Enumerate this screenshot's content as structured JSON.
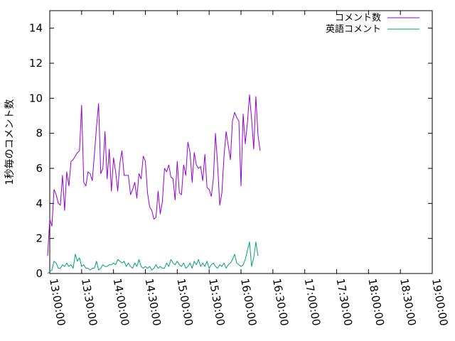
{
  "chart_data": {
    "type": "line",
    "ylabel": "1秒毎のコメント数",
    "xlabel": "",
    "title": "",
    "ylim": [
      0,
      15
    ],
    "xlim": [
      "13:00:00",
      "19:00:00"
    ],
    "x_ticks": [
      "13:00:00",
      "13:30:00",
      "14:00:00",
      "14:30:00",
      "15:00:00",
      "15:30:00",
      "16:00:00",
      "16:30:00",
      "17:00:00",
      "17:30:00",
      "18:00:00",
      "18:30:00",
      "19:00:00"
    ],
    "y_ticks": [
      "0",
      "2",
      "4",
      "6",
      "8",
      "10",
      "12",
      "14"
    ],
    "legend_position": "top-right",
    "grid": false,
    "series": [
      {
        "name": "コメント数",
        "color": "#9400d3",
        "points": [
          [
            "12:58:00",
            1.0
          ],
          [
            "13:00:00",
            3.1
          ],
          [
            "13:02:00",
            2.7
          ],
          [
            "13:04:00",
            4.8
          ],
          [
            "13:06:00",
            4.5
          ],
          [
            "13:08:00",
            4.0
          ],
          [
            "13:10:00",
            3.9
          ],
          [
            "13:12:00",
            5.6
          ],
          [
            "13:14:00",
            3.6
          ],
          [
            "13:16:00",
            5.8
          ],
          [
            "13:18:00",
            5.0
          ],
          [
            "13:20:00",
            6.4
          ],
          [
            "13:22:00",
            6.5
          ],
          [
            "13:24:00",
            6.7
          ],
          [
            "13:26:00",
            6.9
          ],
          [
            "13:28:00",
            7.0
          ],
          [
            "13:30:00",
            9.6
          ],
          [
            "13:32:00",
            5.2
          ],
          [
            "13:34:00",
            5.0
          ],
          [
            "13:36:00",
            5.8
          ],
          [
            "13:38:00",
            5.7
          ],
          [
            "13:40:00",
            5.3
          ],
          [
            "13:42:00",
            6.8
          ],
          [
            "13:44:00",
            8.4
          ],
          [
            "13:46:00",
            9.7
          ],
          [
            "13:48:00",
            5.7
          ],
          [
            "13:50:00",
            6.0
          ],
          [
            "13:52:00",
            8.1
          ],
          [
            "13:54:00",
            5.4
          ],
          [
            "13:56:00",
            7.1
          ],
          [
            "13:58:00",
            4.7
          ],
          [
            "14:00:00",
            6.6
          ],
          [
            "14:02:00",
            5.8
          ],
          [
            "14:04:00",
            4.7
          ],
          [
            "14:06:00",
            6.3
          ],
          [
            "14:08:00",
            7.0
          ],
          [
            "14:10:00",
            5.6
          ],
          [
            "14:12:00",
            5.6
          ],
          [
            "14:14:00",
            5.6
          ],
          [
            "14:16:00",
            4.5
          ],
          [
            "14:18:00",
            4.8
          ],
          [
            "14:20:00",
            5.2
          ],
          [
            "14:22:00",
            4.3
          ],
          [
            "14:24:00",
            5.7
          ],
          [
            "14:26:00",
            5.4
          ],
          [
            "14:28:00",
            6.7
          ],
          [
            "14:30:00",
            6.4
          ],
          [
            "14:32:00",
            4.6
          ],
          [
            "14:34:00",
            3.8
          ],
          [
            "14:36:00",
            3.6
          ],
          [
            "14:38:00",
            3.1
          ],
          [
            "14:40:00",
            3.2
          ],
          [
            "14:42:00",
            4.7
          ],
          [
            "14:44:00",
            3.4
          ],
          [
            "14:46:00",
            4.1
          ],
          [
            "14:48:00",
            6.0
          ],
          [
            "14:50:00",
            5.8
          ],
          [
            "14:52:00",
            6.2
          ],
          [
            "14:54:00",
            5.5
          ],
          [
            "14:56:00",
            5.4
          ],
          [
            "14:58:00",
            4.2
          ],
          [
            "15:00:00",
            6.4
          ],
          [
            "15:02:00",
            4.6
          ],
          [
            "15:04:00",
            4.5
          ],
          [
            "15:06:00",
            6.2
          ],
          [
            "15:08:00",
            5.6
          ],
          [
            "15:10:00",
            7.5
          ],
          [
            "15:12:00",
            6.9
          ],
          [
            "15:14:00",
            5.2
          ],
          [
            "15:16:00",
            6.9
          ],
          [
            "15:18:00",
            6.2
          ],
          [
            "15:20:00",
            6.0
          ],
          [
            "15:22:00",
            6.1
          ],
          [
            "15:24:00",
            5.3
          ],
          [
            "15:26:00",
            6.8
          ],
          [
            "15:28:00",
            4.9
          ],
          [
            "15:30:00",
            4.8
          ],
          [
            "15:32:00",
            4.4
          ],
          [
            "15:34:00",
            5.4
          ],
          [
            "15:36:00",
            8.0
          ],
          [
            "15:38:00",
            6.2
          ],
          [
            "15:40:00",
            3.9
          ],
          [
            "15:42:00",
            4.6
          ],
          [
            "15:44:00",
            6.7
          ],
          [
            "15:46:00",
            8.1
          ],
          [
            "15:48:00",
            7.3
          ],
          [
            "15:50:00",
            6.5
          ],
          [
            "15:52:00",
            8.7
          ],
          [
            "15:54:00",
            9.2
          ],
          [
            "15:56:00",
            8.9
          ],
          [
            "15:58:00",
            8.7
          ],
          [
            "16:00:00",
            5.0
          ],
          [
            "16:02:00",
            9.1
          ],
          [
            "16:04:00",
            7.4
          ],
          [
            "16:06:00",
            8.6
          ],
          [
            "16:08:00",
            10.2
          ],
          [
            "16:10:00",
            8.8
          ],
          [
            "16:12:00",
            7.1
          ],
          [
            "16:14:00",
            10.1
          ],
          [
            "16:16:00",
            7.9
          ],
          [
            "16:18:00",
            7.0
          ]
        ]
      },
      {
        "name": "英語コメント",
        "color": "#009e73",
        "points": [
          [
            "12:58:00",
            0.0
          ],
          [
            "13:00:00",
            0.1
          ],
          [
            "13:02:00",
            0.2
          ],
          [
            "13:04:00",
            0.7
          ],
          [
            "13:06:00",
            0.6
          ],
          [
            "13:08:00",
            0.3
          ],
          [
            "13:10:00",
            0.3
          ],
          [
            "13:12:00",
            0.5
          ],
          [
            "13:14:00",
            0.4
          ],
          [
            "13:16:00",
            0.6
          ],
          [
            "13:18:00",
            0.4
          ],
          [
            "13:20:00",
            0.5
          ],
          [
            "13:22:00",
            0.3
          ],
          [
            "13:24:00",
            1.1
          ],
          [
            "13:26:00",
            0.7
          ],
          [
            "13:28:00",
            0.9
          ],
          [
            "13:30:00",
            0.4
          ],
          [
            "13:32:00",
            0.5
          ],
          [
            "13:34:00",
            0.3
          ],
          [
            "13:36:00",
            0.3
          ],
          [
            "13:38:00",
            0.2
          ],
          [
            "13:40:00",
            0.3
          ],
          [
            "13:42:00",
            0.3
          ],
          [
            "13:44:00",
            0.7
          ],
          [
            "13:46:00",
            0.2
          ],
          [
            "13:48:00",
            0.3
          ],
          [
            "13:50:00",
            0.5
          ],
          [
            "13:52:00",
            0.4
          ],
          [
            "13:54:00",
            0.4
          ],
          [
            "13:56:00",
            0.5
          ],
          [
            "13:58:00",
            0.5
          ],
          [
            "14:00:00",
            0.6
          ],
          [
            "14:02:00",
            0.5
          ],
          [
            "14:04:00",
            0.8
          ],
          [
            "14:06:00",
            0.7
          ],
          [
            "14:08:00",
            0.6
          ],
          [
            "14:10:00",
            0.7
          ],
          [
            "14:12:00",
            0.4
          ],
          [
            "14:14:00",
            0.6
          ],
          [
            "14:16:00",
            0.4
          ],
          [
            "14:18:00",
            0.3
          ],
          [
            "14:20:00",
            0.6
          ],
          [
            "14:22:00",
            0.4
          ],
          [
            "14:24:00",
            0.8
          ],
          [
            "14:26:00",
            0.4
          ],
          [
            "14:28:00",
            0.3
          ],
          [
            "14:30:00",
            0.4
          ],
          [
            "14:32:00",
            0.3
          ],
          [
            "14:34:00",
            0.4
          ],
          [
            "14:36:00",
            0.2
          ],
          [
            "14:38:00",
            0.3
          ],
          [
            "14:40:00",
            0.5
          ],
          [
            "14:42:00",
            0.3
          ],
          [
            "14:44:00",
            0.4
          ],
          [
            "14:46:00",
            0.3
          ],
          [
            "14:48:00",
            0.3
          ],
          [
            "14:50:00",
            0.6
          ],
          [
            "14:52:00",
            0.4
          ],
          [
            "14:54:00",
            0.8
          ],
          [
            "14:56:00",
            0.6
          ],
          [
            "14:58:00",
            0.5
          ],
          [
            "15:00:00",
            0.7
          ],
          [
            "15:02:00",
            0.5
          ],
          [
            "15:04:00",
            0.4
          ],
          [
            "15:06:00",
            0.6
          ],
          [
            "15:08:00",
            0.3
          ],
          [
            "15:10:00",
            0.4
          ],
          [
            "15:12:00",
            0.6
          ],
          [
            "15:14:00",
            0.3
          ],
          [
            "15:16:00",
            0.7
          ],
          [
            "15:18:00",
            0.5
          ],
          [
            "15:20:00",
            0.8
          ],
          [
            "15:22:00",
            0.4
          ],
          [
            "15:24:00",
            0.6
          ],
          [
            "15:26:00",
            0.4
          ],
          [
            "15:28:00",
            0.7
          ],
          [
            "15:30:00",
            0.3
          ],
          [
            "15:32:00",
            0.5
          ],
          [
            "15:34:00",
            0.6
          ],
          [
            "15:36:00",
            0.4
          ],
          [
            "15:38:00",
            0.3
          ],
          [
            "15:40:00",
            0.5
          ],
          [
            "15:42:00",
            0.4
          ],
          [
            "15:44:00",
            0.6
          ],
          [
            "15:46:00",
            0.3
          ],
          [
            "15:48:00",
            0.5
          ],
          [
            "15:50:00",
            0.6
          ],
          [
            "15:52:00",
            0.8
          ],
          [
            "15:54:00",
            1.1
          ],
          [
            "15:56:00",
            0.6
          ],
          [
            "15:58:00",
            0.5
          ],
          [
            "16:00:00",
            0.4
          ],
          [
            "16:02:00",
            0.5
          ],
          [
            "16:04:00",
            0.8
          ],
          [
            "16:06:00",
            1.3
          ],
          [
            "16:08:00",
            1.8
          ],
          [
            "16:10:00",
            0.4
          ],
          [
            "16:12:00",
            0.9
          ],
          [
            "16:14:00",
            1.8
          ],
          [
            "16:16:00",
            1.0
          ]
        ]
      }
    ]
  }
}
